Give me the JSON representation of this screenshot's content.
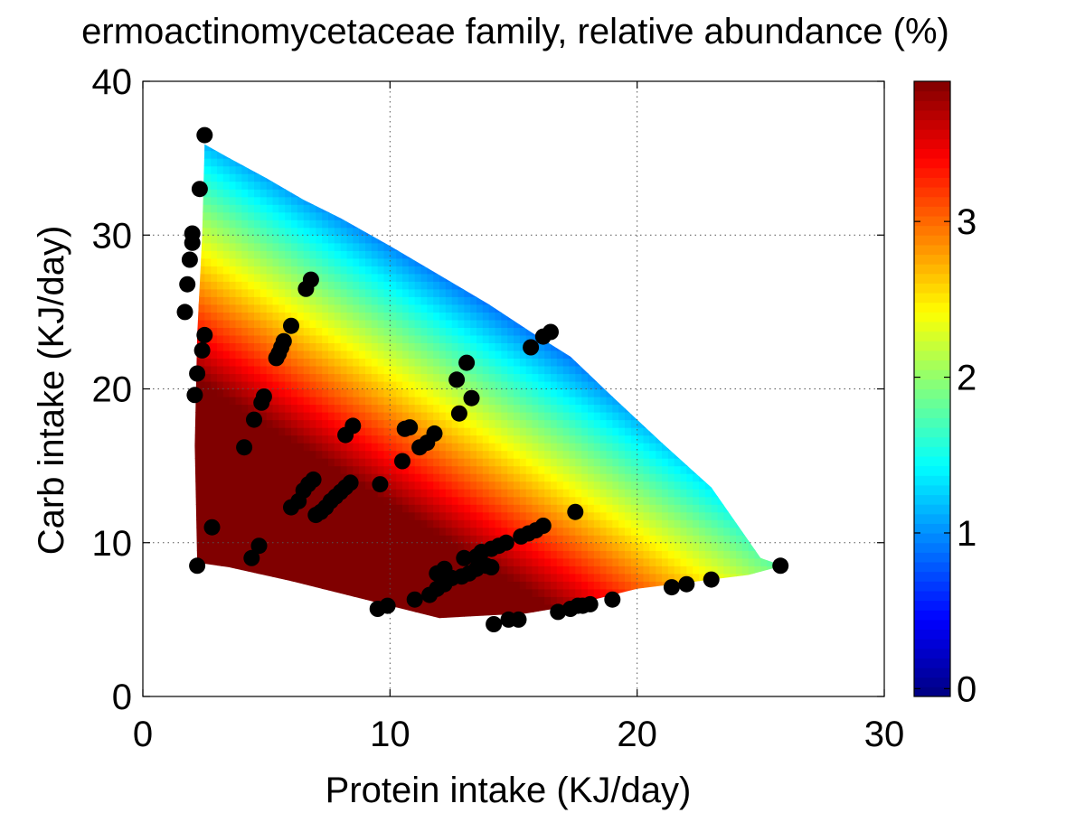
{
  "chart_data": {
    "type": "scatter",
    "title": "ermoactinomycetaceae family, relative abundance (%)",
    "xlabel": "Protein intake (KJ/day)",
    "ylabel": "Carb intake (KJ/day)",
    "xlim": [
      0,
      30
    ],
    "ylim": [
      0,
      40
    ],
    "xticks": [
      "0",
      "10",
      "20",
      "30"
    ],
    "yticks": [
      "0",
      "10",
      "20",
      "30",
      "40"
    ],
    "grid": true,
    "colorbar": {
      "label": "relative abundance (%)",
      "range": [
        -0.05,
        3.9
      ],
      "ticks": [
        "0",
        "1",
        "2",
        "3"
      ],
      "colormap": "jet"
    },
    "surface": {
      "description": "interpolated relative abundance over the sampled intake region",
      "boundary": [
        [
          2.5,
          35.9
        ],
        [
          3.5,
          35.0
        ],
        [
          5.0,
          33.7
        ],
        [
          6.5,
          32.3
        ],
        [
          8.0,
          31.1
        ],
        [
          10.0,
          29.3
        ],
        [
          12.0,
          27.4
        ],
        [
          14.0,
          25.5
        ],
        [
          15.8,
          23.6
        ],
        [
          17.3,
          22.1
        ],
        [
          19.0,
          19.5
        ],
        [
          21.0,
          16.5
        ],
        [
          23.0,
          13.6
        ],
        [
          25.0,
          9.0
        ],
        [
          25.9,
          8.5
        ],
        [
          24.5,
          7.9
        ],
        [
          20.0,
          7.0
        ],
        [
          17.0,
          5.8
        ],
        [
          15.5,
          5.4
        ],
        [
          12.0,
          5.1
        ],
        [
          9.0,
          6.3
        ],
        [
          6.0,
          7.5
        ],
        [
          3.5,
          8.4
        ],
        [
          2.2,
          8.7
        ],
        [
          2.1,
          16.3
        ],
        [
          2.2,
          23.5
        ],
        [
          2.4,
          30.0
        ]
      ],
      "value_model": {
        "a": 7.9,
        "b": -0.18,
        "c": -0.175
      }
    },
    "series": [
      {
        "points": [
          [
            2.5,
            36.5
          ],
          [
            2.3,
            33.0
          ],
          [
            2.0,
            30.1
          ],
          [
            2.0,
            29.5
          ],
          [
            1.9,
            28.4
          ],
          [
            1.8,
            26.8
          ],
          [
            1.7,
            25.0
          ],
          [
            2.5,
            23.5
          ],
          [
            2.4,
            22.5
          ],
          [
            2.2,
            21.0
          ],
          [
            2.1,
            19.6
          ],
          [
            2.2,
            8.5
          ],
          [
            2.8,
            11.0
          ],
          [
            4.1,
            16.2
          ],
          [
            4.5,
            18.0
          ],
          [
            4.8,
            19.1
          ],
          [
            4.9,
            19.5
          ],
          [
            4.4,
            9.0
          ],
          [
            4.7,
            9.8
          ],
          [
            5.4,
            22.0
          ],
          [
            5.5,
            22.3
          ],
          [
            5.6,
            22.7
          ],
          [
            5.7,
            23.1
          ],
          [
            6.0,
            24.1
          ],
          [
            6.6,
            26.5
          ],
          [
            6.8,
            27.1
          ],
          [
            6.0,
            12.3
          ],
          [
            6.3,
            12.7
          ],
          [
            6.5,
            13.4
          ],
          [
            6.7,
            13.8
          ],
          [
            6.9,
            14.1
          ],
          [
            7.0,
            11.8
          ],
          [
            7.2,
            12.0
          ],
          [
            7.4,
            12.3
          ],
          [
            7.6,
            12.7
          ],
          [
            7.8,
            13.0
          ],
          [
            8.0,
            13.3
          ],
          [
            8.2,
            13.6
          ],
          [
            8.4,
            13.9
          ],
          [
            8.2,
            17.0
          ],
          [
            8.5,
            17.6
          ],
          [
            9.5,
            5.7
          ],
          [
            9.6,
            13.8
          ],
          [
            9.9,
            5.9
          ],
          [
            10.5,
            15.3
          ],
          [
            10.6,
            17.4
          ],
          [
            10.8,
            17.5
          ],
          [
            11.0,
            6.3
          ],
          [
            11.2,
            16.2
          ],
          [
            11.5,
            16.5
          ],
          [
            11.8,
            17.1
          ],
          [
            11.6,
            6.6
          ],
          [
            11.9,
            7.0
          ],
          [
            12.2,
            7.3
          ],
          [
            11.9,
            8.0
          ],
          [
            12.2,
            8.3
          ],
          [
            12.5,
            7.7
          ],
          [
            12.7,
            20.6
          ],
          [
            12.9,
            7.8
          ],
          [
            12.8,
            18.4
          ],
          [
            13.1,
            21.7
          ],
          [
            13.2,
            8.0
          ],
          [
            13.3,
            19.4
          ],
          [
            13.5,
            8.3
          ],
          [
            13.0,
            9.0
          ],
          [
            13.5,
            9.1
          ],
          [
            13.7,
            9.4
          ],
          [
            13.9,
            8.5
          ],
          [
            14.1,
            8.4
          ],
          [
            14.1,
            9.6
          ],
          [
            14.4,
            9.8
          ],
          [
            14.7,
            10.0
          ],
          [
            14.2,
            4.7
          ],
          [
            14.8,
            5.0
          ],
          [
            15.2,
            5.0
          ],
          [
            15.3,
            10.4
          ],
          [
            15.6,
            10.6
          ],
          [
            15.9,
            10.8
          ],
          [
            16.2,
            11.1
          ],
          [
            15.7,
            22.7
          ],
          [
            16.2,
            23.4
          ],
          [
            16.5,
            23.7
          ],
          [
            16.8,
            5.5
          ],
          [
            17.3,
            5.7
          ],
          [
            17.6,
            5.9
          ],
          [
            17.8,
            5.9
          ],
          [
            18.1,
            6.0
          ],
          [
            17.5,
            12.0
          ],
          [
            19.0,
            6.3
          ],
          [
            21.4,
            7.1
          ],
          [
            22.0,
            7.3
          ],
          [
            23.0,
            7.6
          ],
          [
            25.8,
            8.5
          ]
        ],
        "color": "#000000"
      }
    ]
  }
}
